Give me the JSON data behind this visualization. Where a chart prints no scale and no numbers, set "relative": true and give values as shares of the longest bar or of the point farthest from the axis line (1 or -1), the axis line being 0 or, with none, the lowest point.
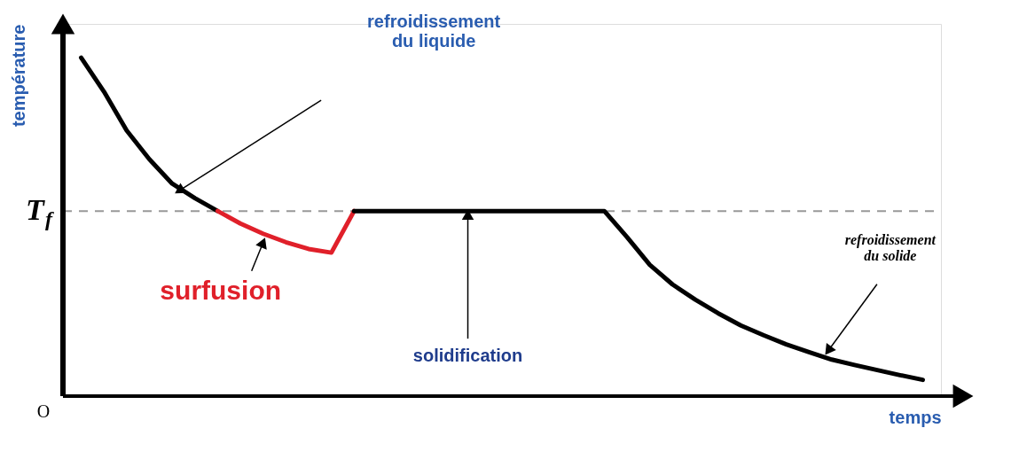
{
  "chart_data": {
    "type": "line",
    "relative": true,
    "xlabel": "temps",
    "ylabel": "température",
    "categories": [
      null,
      null,
      null,
      null,
      null,
      null,
      null,
      null,
      null,
      null,
      null,
      null,
      null,
      null,
      null,
      null,
      null,
      null,
      null,
      null,
      null,
      null,
      null,
      null,
      null,
      null,
      null,
      null,
      null,
      null,
      null,
      null,
      null,
      null,
      null,
      null,
      null,
      null
    ],
    "series": [
      {
        "color": "#000000",
        "values": [
          1.0,
          0.9,
          0.785,
          0.7,
          0.628,
          0.585,
          0.547,
          null,
          null,
          null,
          null,
          null,
          null,
          null,
          null,
          null,
          null,
          null,
          null,
          null,
          null,
          null,
          null,
          null,
          null,
          null,
          null,
          null,
          null,
          null,
          null,
          null,
          null,
          null,
          null,
          null,
          null,
          null
        ]
      },
      {
        "color": "#e0202a",
        "values": [
          null,
          null,
          null,
          null,
          null,
          null,
          0.547,
          0.51,
          0.48,
          0.455,
          0.435,
          0.424,
          0.547,
          null,
          null,
          null,
          null,
          null,
          null,
          null,
          null,
          null,
          null,
          null,
          null,
          null,
          null,
          null,
          null,
          null,
          null,
          null,
          null,
          null,
          null,
          null,
          null,
          null
        ]
      },
      {
        "color": "#000000",
        "values": [
          null,
          null,
          null,
          null,
          null,
          null,
          null,
          null,
          null,
          null,
          null,
          null,
          0.547,
          0.547,
          0.547,
          0.547,
          0.547,
          0.547,
          0.547,
          0.547,
          0.547,
          0.547,
          0.547,
          0.547,
          0.47,
          0.388,
          0.33,
          0.285,
          0.245,
          0.209,
          0.18,
          0.153,
          0.13,
          0.108,
          0.092,
          0.077,
          0.062,
          0.048
        ]
      }
    ],
    "ref_lines": [
      {
        "axis": "y",
        "value": 0.547,
        "label": "T$_{f}$",
        "color": "#999999",
        "line_style": "dashed"
      }
    ],
    "annotations": [
      "refroidissement\ndu liquide",
      "surfusion",
      "solidification",
      "refroidissement\ndu solide",
      "O"
    ]
  }
}
